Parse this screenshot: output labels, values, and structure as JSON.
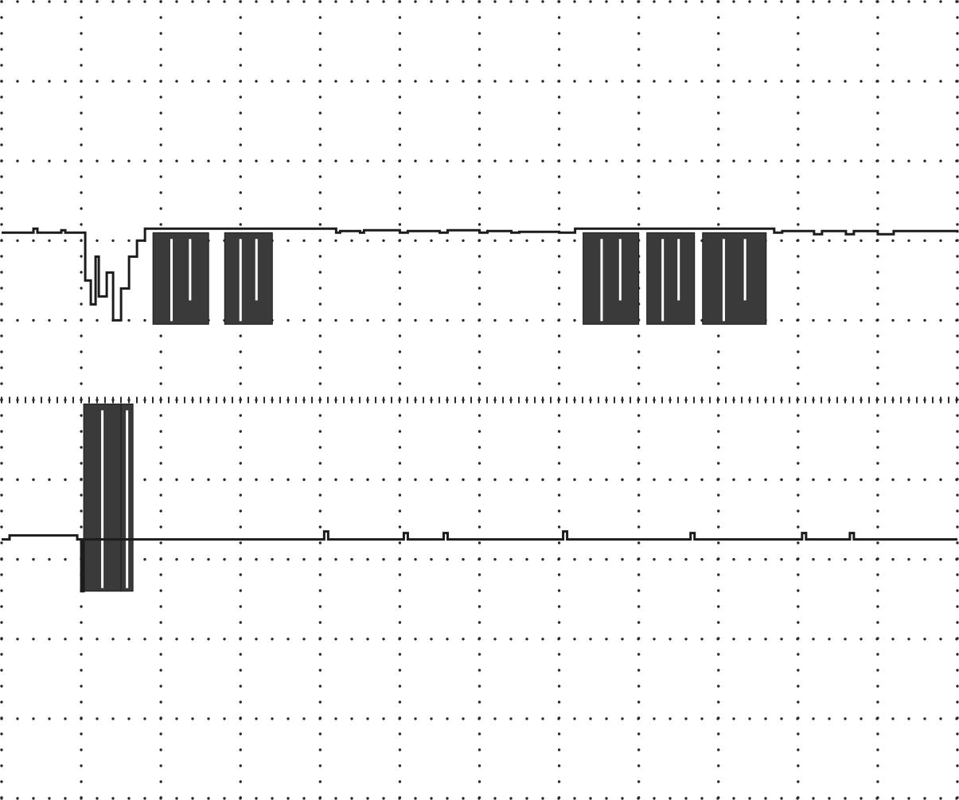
{
  "chart_data": {
    "type": "line",
    "title": "",
    "xlabel": "",
    "ylabel": "",
    "grid": true,
    "legend": "none",
    "x_divisions": 12,
    "y_divisions": 10,
    "xlim": [
      0,
      12
    ],
    "ylim": [
      0,
      10
    ],
    "colors": {
      "trace": "#1c1c1c",
      "burst_fill": "#3a3a3a",
      "grid_dot": "#2a2a2a",
      "background": "#ffffff"
    },
    "series": [
      {
        "baseline": 7.1,
        "low_level": 5.95,
        "x": [
          0.0,
          0.4,
          0.45,
          0.75,
          0.8,
          1.03,
          1.05,
          1.1,
          1.12,
          1.15,
          1.18,
          1.2,
          1.22,
          1.3,
          1.32,
          1.38,
          1.4,
          1.45,
          1.5,
          1.55,
          1.6,
          1.65,
          1.7,
          1.75,
          1.8,
          4.0,
          4.2,
          4.25,
          4.5,
          4.55,
          5.0,
          5.1,
          5.5,
          5.6,
          6.0,
          6.1,
          6.4,
          6.5,
          7.0,
          7.2,
          9.7,
          9.8,
          10.2,
          10.3,
          10.6,
          10.7,
          11.0,
          11.2,
          12.0
        ],
        "y": [
          7.1,
          7.15,
          7.1,
          7.13,
          7.1,
          7.1,
          6.5,
          6.5,
          6.2,
          6.2,
          6.8,
          6.8,
          6.3,
          6.3,
          6.6,
          6.6,
          6.0,
          6.0,
          6.4,
          6.4,
          6.8,
          6.8,
          7.0,
          7.0,
          7.15,
          7.15,
          7.1,
          7.12,
          7.1,
          7.13,
          7.1,
          7.12,
          7.1,
          7.13,
          7.1,
          7.12,
          7.1,
          7.11,
          7.1,
          7.15,
          7.1,
          7.12,
          7.08,
          7.12,
          7.08,
          7.12,
          7.08,
          7.12,
          7.1
        ],
        "bursts": [
          [
            1.9,
            2.6
          ],
          [
            2.8,
            3.4
          ],
          [
            7.3,
            8.0
          ],
          [
            8.1,
            8.7
          ],
          [
            8.8,
            9.6
          ]
        ]
      },
      {
        "baseline": 3.25,
        "low_level": 2.6,
        "high_level": 4.95,
        "x": [
          0.0,
          0.1,
          0.95,
          1.0,
          1.03,
          1.65,
          1.7,
          4.0,
          4.05,
          4.1,
          5.0,
          5.05,
          5.1,
          5.5,
          5.55,
          5.6,
          7.0,
          7.05,
          7.1,
          8.6,
          8.65,
          8.7,
          10.0,
          10.05,
          10.1,
          10.6,
          10.65,
          10.7,
          12.0
        ],
        "y": [
          3.25,
          3.3,
          3.25,
          2.6,
          3.25,
          3.25,
          3.25,
          3.25,
          3.35,
          3.25,
          3.25,
          3.33,
          3.25,
          3.25,
          3.33,
          3.25,
          3.25,
          3.35,
          3.25,
          3.25,
          3.33,
          3.25,
          3.25,
          3.33,
          3.25,
          3.25,
          3.33,
          3.25,
          3.25
        ],
        "bursts": [
          [
            1.03,
            1.5
          ],
          [
            1.5,
            1.65
          ]
        ]
      }
    ]
  }
}
